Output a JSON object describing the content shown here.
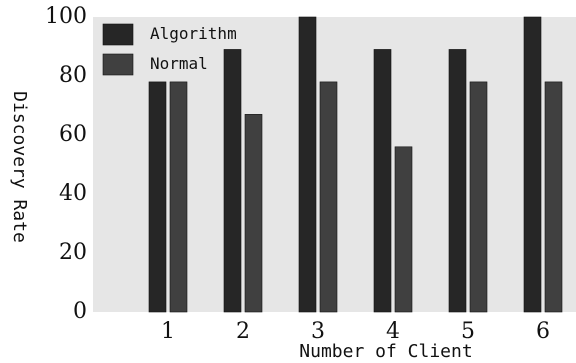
{
  "chart_data": {
    "type": "bar",
    "categories": [
      "1",
      "2",
      "3",
      "4",
      "5",
      "6"
    ],
    "series": [
      {
        "name": "Algorithm",
        "values": [
          78,
          89,
          100,
          89,
          89,
          100
        ]
      },
      {
        "name": "Normal",
        "values": [
          78,
          67,
          78,
          56,
          78,
          78
        ]
      }
    ],
    "xlabel": "Number of Client",
    "ylabel": "Discovery Rate",
    "ylim": [
      0,
      100
    ],
    "yticks": [
      "0",
      "20",
      "40",
      "60",
      "80",
      "100"
    ],
    "grid": false,
    "legend_position": "top-left"
  },
  "colors": {
    "plot_background": "#e6e6e6",
    "Algorithm": "#262626",
    "Normal": "#404040"
  }
}
